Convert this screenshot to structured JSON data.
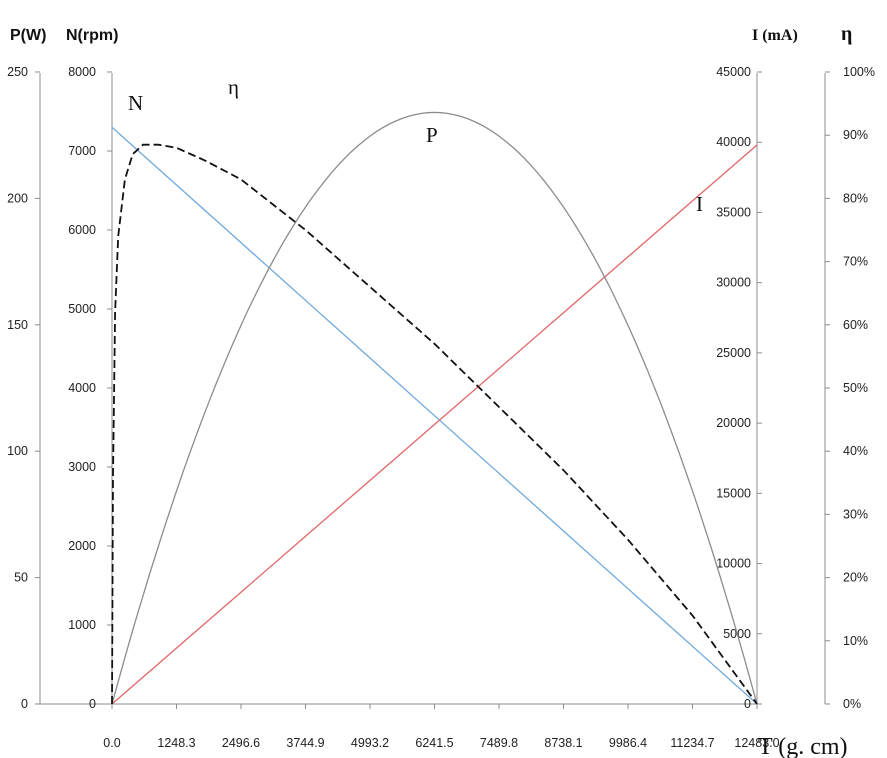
{
  "chart_data": {
    "type": "line",
    "x": [
      0.0,
      1248.3,
      2496.6,
      3744.9,
      4993.2,
      6241.5,
      7489.8,
      8738.1,
      9986.4,
      11234.7,
      12483.0
    ],
    "x_tick_labels": [
      "0.0",
      "1248.3",
      "2496.6",
      "3744.9",
      "4993.2",
      "6241.5",
      "7489.8",
      "8738.1",
      "9986.4",
      "11234.7",
      "12483.0"
    ],
    "xlabel": "T (g. cm)",
    "axes": {
      "p": {
        "title": "P(W)",
        "range": [
          0,
          250
        ],
        "ticks": [
          "0",
          "50",
          "100",
          "150",
          "200",
          "250"
        ]
      },
      "n": {
        "title": "N(rpm)",
        "range": [
          0,
          8000
        ],
        "ticks": [
          "0",
          "1000",
          "2000",
          "3000",
          "4000",
          "5000",
          "6000",
          "7000",
          "8000"
        ]
      },
      "i": {
        "title": "I (mA)",
        "range": [
          0,
          45000
        ],
        "ticks": [
          "0",
          "5000",
          "10000",
          "15000",
          "20000",
          "25000",
          "30000",
          "35000",
          "40000",
          "45000"
        ]
      },
      "eta": {
        "title": "η",
        "range": [
          0,
          100
        ],
        "ticks": [
          "0%",
          "10%",
          "20%",
          "30%",
          "40%",
          "50%",
          "60%",
          "70%",
          "80%",
          "90%",
          "100%"
        ]
      }
    },
    "series": [
      {
        "name": "N",
        "axis": "n",
        "color": "#6fa8dc",
        "style": "solid",
        "values": [
          7300,
          6570,
          5840,
          5110,
          4380,
          3650,
          2920,
          2190,
          1460,
          730,
          0
        ]
      },
      {
        "name": "I",
        "axis": "i",
        "color": "#e06666",
        "style": "solid",
        "values": [
          0,
          3980,
          7960,
          11940,
          15920,
          19900,
          23880,
          27860,
          31840,
          35820,
          39800
        ]
      },
      {
        "name": "P",
        "axis": "p",
        "color": "#8c8c8c",
        "style": "solid",
        "values": [
          0,
          84,
          150,
          196,
          224,
          234,
          224,
          196,
          150,
          84,
          0
        ]
      },
      {
        "name": "η",
        "axis": "eta",
        "color": "#111111",
        "style": "dashed",
        "x": [
          0,
          20,
          60,
          120,
          250,
          400,
          600,
          900,
          1248.3,
          1800,
          2496.6,
          3744.9,
          4993.2,
          6241.5,
          7489.8,
          8738.1,
          9986.4,
          11234.7,
          12483.0
        ],
        "values": [
          0,
          36,
          62,
          74,
          83,
          87,
          88.5,
          88.5,
          88,
          86,
          83,
          75,
          66,
          57,
          47,
          37,
          26,
          14,
          0
        ]
      }
    ],
    "labels": {
      "n": "N",
      "eta": "η",
      "p": "P",
      "i": "I"
    }
  }
}
